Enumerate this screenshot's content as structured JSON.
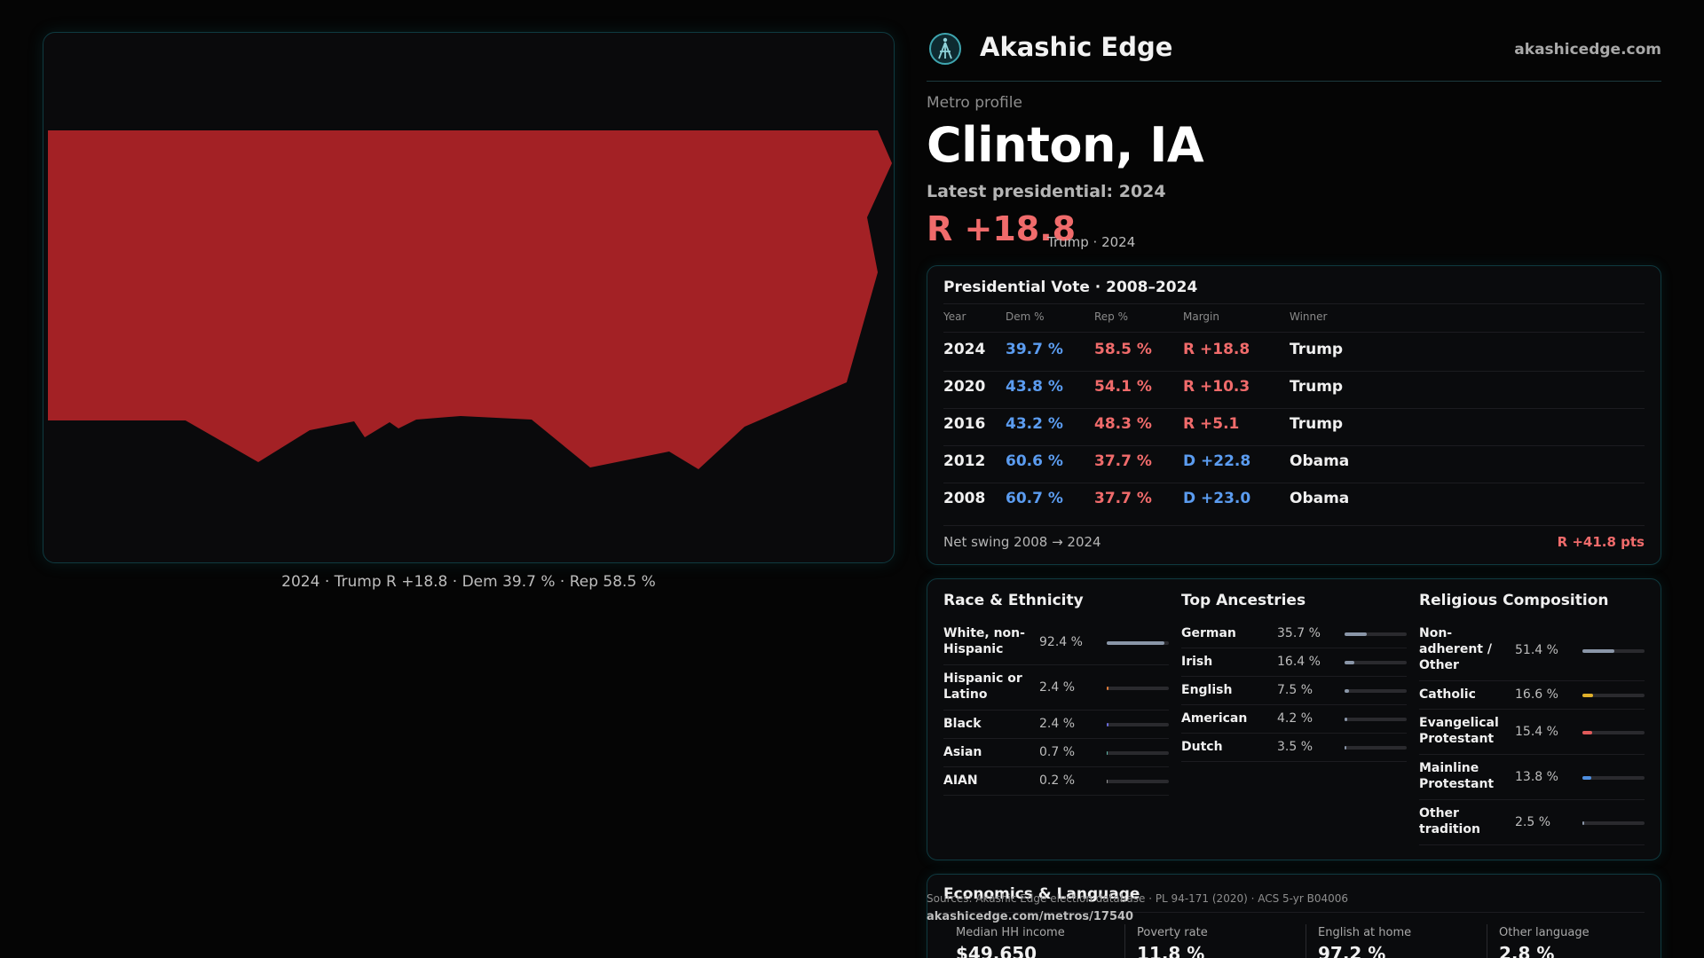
{
  "brand": {
    "name": "Akashic Edge",
    "url": "akashicedge.com"
  },
  "profile": {
    "eyebrow": "Metro profile",
    "title": "Clinton, IA",
    "latest_label": "Latest presidential: 2024",
    "margin": "R +18.8",
    "margin_sub": "Trump · 2024"
  },
  "map": {
    "caption": "2024 · Trump R +18.8 · Dem 39.7 % · Rep 58.5 %",
    "fill_color": "#a32125"
  },
  "vote": {
    "title": "Presidential Vote · 2008–2024",
    "headers": {
      "year": "Year",
      "dem": "Dem %",
      "rep": "Rep %",
      "margin": "Margin",
      "winner": "Winner"
    },
    "rows": [
      {
        "year": "2024",
        "dem": "39.7 %",
        "rep": "58.5 %",
        "margin": "R +18.8",
        "party": "R",
        "winner": "Trump"
      },
      {
        "year": "2020",
        "dem": "43.8 %",
        "rep": "54.1 %",
        "margin": "R +10.3",
        "party": "R",
        "winner": "Trump"
      },
      {
        "year": "2016",
        "dem": "43.2 %",
        "rep": "48.3 %",
        "margin": "R +5.1",
        "party": "R",
        "winner": "Trump"
      },
      {
        "year": "2012",
        "dem": "60.6 %",
        "rep": "37.7 %",
        "margin": "D +22.8",
        "party": "D",
        "winner": "Obama"
      },
      {
        "year": "2008",
        "dem": "60.7 %",
        "rep": "37.7 %",
        "margin": "D +23.0",
        "party": "D",
        "winner": "Obama"
      }
    ],
    "net_label": "Net swing 2008 → 2024",
    "net_value": "R +41.8 pts"
  },
  "race": {
    "title": "Race & Ethnicity",
    "items": [
      {
        "label": "White, non-Hispanic",
        "value": "92.4 %",
        "pct": 92.4,
        "color": "#8a96a8"
      },
      {
        "label": "Hispanic or Latino",
        "value": "2.4 %",
        "pct": 2.4,
        "color": "#e07b39"
      },
      {
        "label": "Black",
        "value": "2.4 %",
        "pct": 2.4,
        "color": "#6a6ad8"
      },
      {
        "label": "Asian",
        "value": "0.7 %",
        "pct": 0.7,
        "color": "#5fb7a8"
      },
      {
        "label": "AIAN",
        "value": "0.2 %",
        "pct": 0.2,
        "color": "#9a9a9a"
      }
    ]
  },
  "ancestry": {
    "title": "Top Ancestries",
    "items": [
      {
        "label": "German",
        "value": "35.7 %",
        "pct": 35.7,
        "color": "#8a96a8"
      },
      {
        "label": "Irish",
        "value": "16.4 %",
        "pct": 16.4,
        "color": "#8a96a8"
      },
      {
        "label": "English",
        "value": "7.5 %",
        "pct": 7.5,
        "color": "#8a96a8"
      },
      {
        "label": "American",
        "value": "4.2 %",
        "pct": 4.2,
        "color": "#8a96a8"
      },
      {
        "label": "Dutch",
        "value": "3.5 %",
        "pct": 3.5,
        "color": "#8a96a8"
      }
    ]
  },
  "religion": {
    "title": "Religious Composition",
    "items": [
      {
        "label": "Non-adherent / Other",
        "value": "51.4 %",
        "pct": 51.4,
        "color": "#8a96a8"
      },
      {
        "label": "Catholic",
        "value": "16.6 %",
        "pct": 16.6,
        "color": "#e0b02a"
      },
      {
        "label": "Evangelical Protestant",
        "value": "15.4 %",
        "pct": 15.4,
        "color": "#e05a5a"
      },
      {
        "label": "Mainline Protestant",
        "value": "13.8 %",
        "pct": 13.8,
        "color": "#4f8fe0"
      },
      {
        "label": "Other tradition",
        "value": "2.5 %",
        "pct": 2.5,
        "color": "#8a96a8"
      }
    ]
  },
  "econ": {
    "title": "Economics & Language",
    "items": [
      {
        "label": "Median HH income",
        "value": "$49,650"
      },
      {
        "label": "Poverty rate",
        "value": "11.8 %"
      },
      {
        "label": "English at home",
        "value": "97.2 %"
      },
      {
        "label": "Other language",
        "value": "2.8 %"
      }
    ]
  },
  "footer": {
    "sources": "Sources: Akashic Edge election database · PL 94-171 (2020) · ACS 5-yr B04006",
    "url": "akashicedge.com/metros/17540"
  }
}
